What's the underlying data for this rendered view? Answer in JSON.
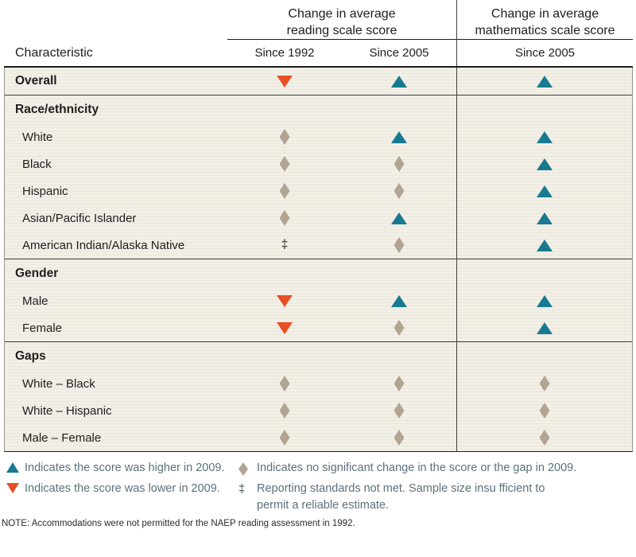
{
  "table": {
    "header": {
      "characteristic": "Characteristic",
      "reading_spanner": "Change in average\nreading scale score",
      "math_spanner": "Change in average\nmathematics scale score",
      "sub_reading_1": "Since 1992",
      "sub_reading_2": "Since 2005",
      "sub_math": "Since 2005"
    },
    "rows": [
      {
        "kind": "overall",
        "label": "Overall",
        "symbols": [
          "down",
          "up",
          "up"
        ]
      },
      {
        "kind": "section",
        "label": "Race/ethnicity",
        "symbols": [
          null,
          null,
          null
        ]
      },
      {
        "kind": "data",
        "label": "White",
        "symbols": [
          "diamond",
          "up",
          "up"
        ]
      },
      {
        "kind": "data",
        "label": "Black",
        "symbols": [
          "diamond",
          "diamond",
          "up"
        ]
      },
      {
        "kind": "data",
        "label": "Hispanic",
        "symbols": [
          "diamond",
          "diamond",
          "up"
        ]
      },
      {
        "kind": "data",
        "label": "Asian/Pacific Islander",
        "symbols": [
          "diamond",
          "up",
          "up"
        ]
      },
      {
        "kind": "data",
        "label": "American Indian/Alaska Native",
        "symbols": [
          "dagger",
          "diamond",
          "up"
        ]
      },
      {
        "kind": "section",
        "label": "Gender",
        "symbols": [
          null,
          null,
          null
        ]
      },
      {
        "kind": "data",
        "label": "Male",
        "symbols": [
          "down",
          "up",
          "up"
        ]
      },
      {
        "kind": "data",
        "label": "Female",
        "symbols": [
          "down",
          "diamond",
          "up"
        ]
      },
      {
        "kind": "section",
        "label": "Gaps",
        "symbols": [
          null,
          null,
          null
        ]
      },
      {
        "kind": "data",
        "label": "White – Black",
        "symbols": [
          "diamond",
          "diamond",
          "diamond"
        ]
      },
      {
        "kind": "data",
        "label": "White – Hispanic",
        "symbols": [
          "diamond",
          "diamond",
          "diamond"
        ]
      },
      {
        "kind": "data",
        "label": "Male – Female",
        "symbols": [
          "diamond",
          "diamond",
          "diamond"
        ]
      }
    ]
  },
  "legend": {
    "higher": "Indicates the score was higher in 2009.",
    "lower": "Indicates the score was lower in 2009.",
    "no_change": "Indicates no significant change in the score or the gap in 2009.",
    "standards": "Reporting standards not met. Sample size insu fficient to\npermit a reliable estimate.",
    "dagger_char": "‡"
  },
  "note": "NOTE: Accommodations were not permitted for the NAEP reading assessment in 1992.",
  "colors": {
    "teal": "#187a91",
    "orange": "#e84f24",
    "tan": "#b1a492",
    "cream": "#f2efe7",
    "legend": "#5c707c"
  },
  "chart_data": {
    "type": "table",
    "title": "Changes in NAEP average scale scores, by characteristic",
    "columns": [
      "Reading: Since 1992",
      "Reading: Since 2005",
      "Mathematics: Since 2005"
    ],
    "value_key": {
      "up": "score higher in 2009",
      "down": "score lower in 2009",
      "diamond": "no significant change",
      "dagger": "reporting standards not met"
    },
    "rows": [
      {
        "group": null,
        "characteristic": "Overall",
        "values": [
          "down",
          "up",
          "up"
        ]
      },
      {
        "group": "Race/ethnicity",
        "characteristic": "White",
        "values": [
          "diamond",
          "up",
          "up"
        ]
      },
      {
        "group": "Race/ethnicity",
        "characteristic": "Black",
        "values": [
          "diamond",
          "diamond",
          "up"
        ]
      },
      {
        "group": "Race/ethnicity",
        "characteristic": "Hispanic",
        "values": [
          "diamond",
          "diamond",
          "up"
        ]
      },
      {
        "group": "Race/ethnicity",
        "characteristic": "Asian/Pacific Islander",
        "values": [
          "diamond",
          "up",
          "up"
        ]
      },
      {
        "group": "Race/ethnicity",
        "characteristic": "American Indian/Alaska Native",
        "values": [
          "dagger",
          "diamond",
          "up"
        ]
      },
      {
        "group": "Gender",
        "characteristic": "Male",
        "values": [
          "down",
          "up",
          "up"
        ]
      },
      {
        "group": "Gender",
        "characteristic": "Female",
        "values": [
          "down",
          "diamond",
          "up"
        ]
      },
      {
        "group": "Gaps",
        "characteristic": "White – Black",
        "values": [
          "diamond",
          "diamond",
          "diamond"
        ]
      },
      {
        "group": "Gaps",
        "characteristic": "White – Hispanic",
        "values": [
          "diamond",
          "diamond",
          "diamond"
        ]
      },
      {
        "group": "Gaps",
        "characteristic": "Male – Female",
        "values": [
          "diamond",
          "diamond",
          "diamond"
        ]
      }
    ]
  }
}
